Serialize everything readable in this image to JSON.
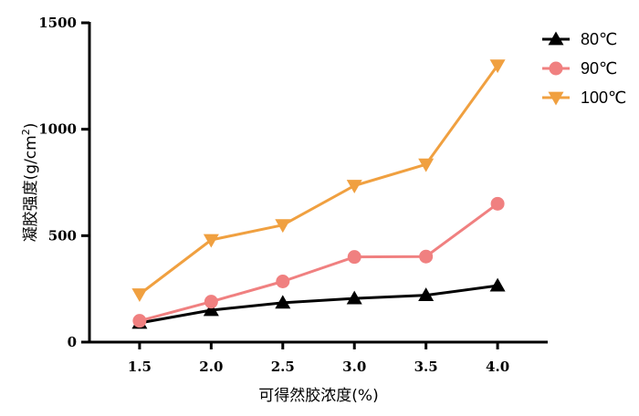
{
  "chart_data": {
    "type": "line",
    "title": "",
    "xlabel": "可得然胶浓度(%)",
    "ylabel": "凝胶强度(g/cm²)",
    "ylabel_main": "凝胶强度(g/cm",
    "ylabel_sup": "2",
    "ylabel_end": ")",
    "x": [
      1.5,
      2.0,
      2.5,
      3.0,
      3.5,
      4.0
    ],
    "x_tick_labels": [
      "1.5",
      "2.0",
      "2.5",
      "3.0",
      "3.5",
      "4.0"
    ],
    "y_ticks": [
      0,
      500,
      1000,
      1500
    ],
    "y_tick_labels": [
      "0",
      "500",
      "1000",
      "1500"
    ],
    "xlim": [
      1.15,
      4.35
    ],
    "ylim": [
      0,
      1500
    ],
    "grid": false,
    "legend_position": "top-right",
    "series": [
      {
        "name": "80℃",
        "marker": "triangle-up",
        "color": "#000000",
        "values": [
          90,
          150,
          185,
          205,
          220,
          265
        ]
      },
      {
        "name": "90℃",
        "marker": "circle",
        "color": "#F08080",
        "values": [
          100,
          190,
          285,
          400,
          402,
          650
        ]
      },
      {
        "name": "100℃",
        "marker": "triangle-down",
        "color": "#F0A040",
        "values": [
          225,
          480,
          550,
          735,
          835,
          1300
        ]
      }
    ]
  }
}
